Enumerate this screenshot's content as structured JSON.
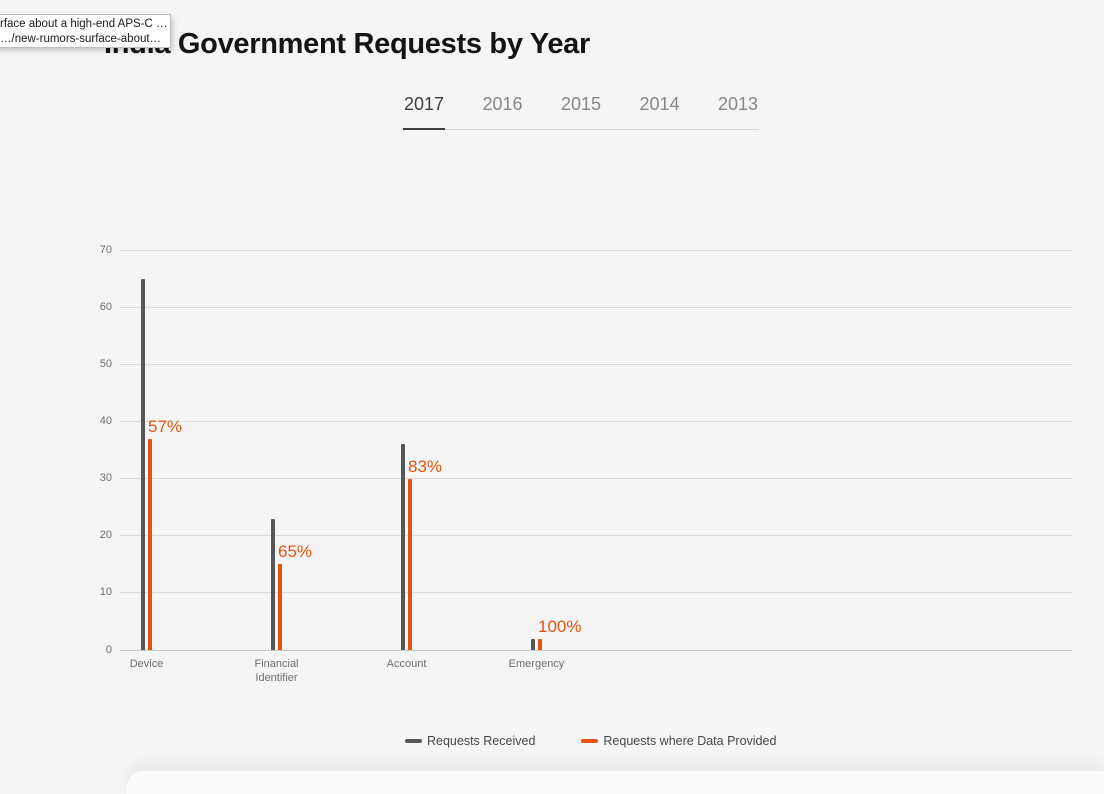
{
  "page": {
    "background": "#f5f5f6"
  },
  "link_tooltip": {
    "line1": "rface about a high-end APS-C …",
    "line2": "…/new-rumors-surface-about…"
  },
  "header": {
    "title": "India Government Requests by Year"
  },
  "tabs": [
    {
      "label": "2017",
      "active": true
    },
    {
      "label": "2016",
      "active": false
    },
    {
      "label": "2015",
      "active": false
    },
    {
      "label": "2014",
      "active": false
    },
    {
      "label": "2013",
      "active": false
    }
  ],
  "colors": {
    "received": "#57575a",
    "provided": "#e5530f",
    "axis_text": "#6e6e73",
    "grid": "#dcdcde"
  },
  "legend": [
    {
      "label": "Requests Received",
      "color": "#57575a"
    },
    {
      "label": "Requests where Data Provided",
      "color": "#e5530f"
    }
  ],
  "chart_data": {
    "type": "bar",
    "title": "India Government Requests by Year",
    "categories": [
      "Device",
      "Financial Identifier",
      "Account",
      "Emergency"
    ],
    "series": [
      {
        "name": "Requests Received",
        "color": "#57575a",
        "values": [
          65,
          23,
          36,
          2
        ]
      },
      {
        "name": "Requests where Data Provided",
        "color": "#e5530f",
        "values": [
          37,
          15,
          30,
          2
        ]
      }
    ],
    "percent_labels": [
      "57%",
      "65%",
      "83%",
      "100%"
    ],
    "y_ticks": [
      0,
      10,
      20,
      30,
      40,
      50,
      60,
      70
    ],
    "ylim": [
      0,
      70
    ],
    "xlabel": "",
    "ylabel": "",
    "grid": true,
    "legend_position": "bottom"
  }
}
